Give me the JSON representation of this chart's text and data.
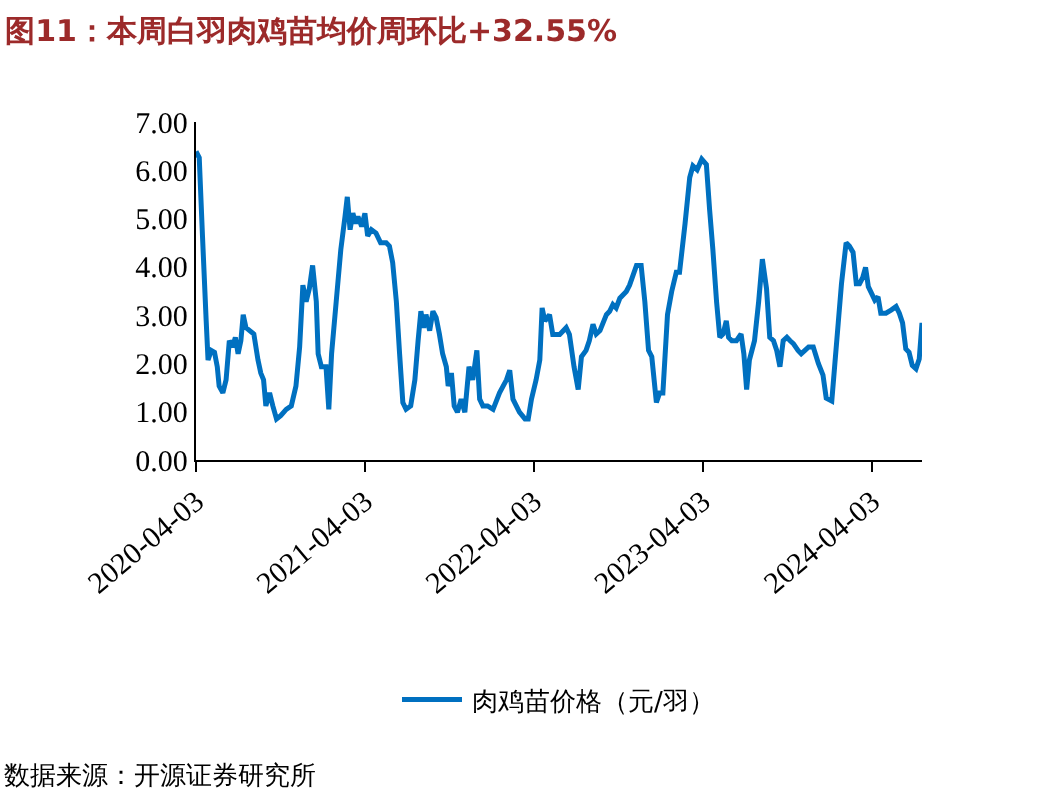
{
  "chart_data": {
    "type": "line",
    "title": "图11：本周白羽肉鸡苗均价周环比+32.55%",
    "x": [
      "2020-04-03",
      "2020-04-10",
      "2020-04-17",
      "2020-04-25",
      "2020-04-29",
      "2020-05-06",
      "2020-05-13",
      "2020-05-19",
      "2020-05-23",
      "2020-05-31",
      "2020-06-07",
      "2020-06-14",
      "2020-06-21",
      "2020-06-27",
      "2020-07-03",
      "2020-07-09",
      "2020-07-14",
      "2020-07-20",
      "2020-08-06",
      "2020-08-15",
      "2020-08-21",
      "2020-08-27",
      "2020-09-01",
      "2020-09-09",
      "2020-09-16",
      "2020-09-24",
      "2020-10-03",
      "2020-10-15",
      "2020-10-26",
      "2020-11-05",
      "2020-11-13",
      "2020-11-20",
      "2020-11-27",
      "2020-12-04",
      "2020-12-11",
      "2020-12-19",
      "2020-12-23",
      "2020-12-30",
      "2021-01-09",
      "2021-01-15",
      "2021-01-21",
      "2021-01-31",
      "2021-02-10",
      "2021-02-19",
      "2021-02-24",
      "2021-03-02",
      "2021-03-08",
      "2021-03-14",
      "2021-03-19",
      "2021-03-27",
      "2021-04-03",
      "2021-04-09",
      "2021-04-17",
      "2021-04-27",
      "2021-05-07",
      "2021-05-19",
      "2021-05-26",
      "2021-06-02",
      "2021-06-10",
      "2021-06-17",
      "2021-06-24",
      "2021-07-01",
      "2021-07-11",
      "2021-07-20",
      "2021-07-27",
      "2021-08-02",
      "2021-08-08",
      "2021-08-13",
      "2021-08-21",
      "2021-08-28",
      "2021-09-04",
      "2021-09-11",
      "2021-09-18",
      "2021-09-26",
      "2021-09-30",
      "2021-10-07",
      "2021-10-13",
      "2021-10-20",
      "2021-10-28",
      "2021-11-05",
      "2021-11-14",
      "2021-11-22",
      "2021-12-01",
      "2021-12-07",
      "2021-12-14",
      "2021-12-24",
      "2022-01-05",
      "2022-01-19",
      "2022-02-03",
      "2022-02-10",
      "2022-02-17",
      "2022-03-03",
      "2022-03-15",
      "2022-03-22",
      "2022-03-29",
      "2022-04-08",
      "2022-04-16",
      "2022-04-21",
      "2022-04-27",
      "2022-05-07",
      "2022-05-14",
      "2022-05-29",
      "2022-06-12",
      "2022-06-19",
      "2022-06-29",
      "2022-07-08",
      "2022-07-15",
      "2022-07-25",
      "2022-08-01",
      "2022-08-09",
      "2022-08-16",
      "2022-08-24",
      "2022-09-07",
      "2022-09-14",
      "2022-09-21",
      "2022-09-28",
      "2022-10-06",
      "2022-10-20",
      "2022-10-27",
      "2022-11-11",
      "2022-11-21",
      "2022-11-29",
      "2022-12-07",
      "2022-12-14",
      "2022-12-24",
      "2022-12-31",
      "2023-01-07",
      "2023-01-17",
      "2023-01-26",
      "2023-02-05",
      "2023-02-12",
      "2023-02-24",
      "2023-03-06",
      "2023-03-13",
      "2023-03-22",
      "2023-04-01",
      "2023-04-11",
      "2023-04-18",
      "2023-04-25",
      "2023-05-03",
      "2023-05-10",
      "2023-05-17",
      "2023-05-24",
      "2023-05-29",
      "2023-06-05",
      "2023-06-15",
      "2023-06-25",
      "2023-07-01",
      "2023-07-07",
      "2023-07-13",
      "2023-07-24",
      "2023-08-02",
      "2023-08-10",
      "2023-08-19",
      "2023-08-26",
      "2023-09-03",
      "2023-09-10",
      "2023-09-17",
      "2023-09-24",
      "2023-10-02",
      "2023-10-09",
      "2023-10-16",
      "2023-10-26",
      "2023-11-02",
      "2023-11-10",
      "2023-11-18",
      "2023-11-28",
      "2023-12-09",
      "2023-12-19",
      "2023-12-26",
      "2024-01-07",
      "2024-01-14",
      "2024-01-21",
      "2024-01-28",
      "2024-02-07",
      "2024-02-14",
      "2024-02-22",
      "2024-02-29",
      "2024-03-07",
      "2024-03-14",
      "2024-03-20",
      "2024-03-26",
      "2024-04-02",
      "2024-04-09",
      "2024-04-16",
      "2024-04-22",
      "2024-05-03",
      "2024-05-15",
      "2024-05-25",
      "2024-06-01",
      "2024-06-08",
      "2024-06-15",
      "2024-06-22",
      "2024-06-29",
      "2024-07-07",
      "2024-07-14",
      "2024-07-20"
    ],
    "series": [
      {
        "name": "肉鸡苗价格（元/羽）",
        "color": "#0070c0",
        "values": [
          6.39,
          6.26,
          4.64,
          2.88,
          2.07,
          2.27,
          2.23,
          1.93,
          1.53,
          1.39,
          1.66,
          2.47,
          2.34,
          2.54,
          2.2,
          2.47,
          3.01,
          2.74,
          2.61,
          2.07,
          1.8,
          1.66,
          1.12,
          1.39,
          1.12,
          0.85,
          0.92,
          1.05,
          1.12,
          1.53,
          2.34,
          3.62,
          3.28,
          3.55,
          4.03,
          3.28,
          2.2,
          1.93,
          1.93,
          1.05,
          2.2,
          3.28,
          4.36,
          5.04,
          5.45,
          4.77,
          5.11,
          4.9,
          5.04,
          4.84,
          5.11,
          4.64,
          4.77,
          4.7,
          4.5,
          4.5,
          4.43,
          4.09,
          3.28,
          2.2,
          1.19,
          1.05,
          1.12,
          1.66,
          2.47,
          3.08,
          2.74,
          3.01,
          2.68,
          3.08,
          2.95,
          2.61,
          2.2,
          1.93,
          1.53,
          1.8,
          1.12,
          0.99,
          1.26,
          0.99,
          1.93,
          1.66,
          2.27,
          1.26,
          1.12,
          1.12,
          1.05,
          1.39,
          1.66,
          1.86,
          1.26,
          0.99,
          0.85,
          0.85,
          1.26,
          1.66,
          2.07,
          3.15,
          2.88,
          3.01,
          2.6,
          2.6,
          2.74,
          2.6,
          1.93,
          1.46,
          2.14,
          2.27,
          2.47,
          2.81,
          2.61,
          2.68,
          3.01,
          3.08,
          3.22,
          3.15,
          3.35,
          3.49,
          3.62,
          4.03,
          4.03,
          3.28,
          2.27,
          2.14,
          1.19,
          1.39,
          1.39,
          3.01,
          3.49,
          3.89,
          3.89,
          4.9,
          5.85,
          6.09,
          6.01,
          6.23,
          6.12,
          5.18,
          4.36,
          3.28,
          2.54,
          2.61,
          2.88,
          2.54,
          2.47,
          2.47,
          2.61,
          2.2,
          1.46,
          2.07,
          2.47,
          3.28,
          4.16,
          3.55,
          2.54,
          2.47,
          2.27,
          1.93,
          2.47,
          2.54,
          2.47,
          2.41,
          2.27,
          2.2,
          2.27,
          2.34,
          2.34,
          2.0,
          1.76,
          1.28,
          1.22,
          2.03,
          2.84,
          3.65,
          4.5,
          4.43,
          4.3,
          3.65,
          3.65,
          3.78,
          3.99,
          3.59,
          3.45,
          3.31,
          3.38,
          3.04,
          3.04,
          3.11,
          3.18,
          3.04,
          2.84,
          2.3,
          2.23,
          1.96,
          1.89,
          2.09,
          2.84
        ]
      }
    ],
    "xlim": [
      "2020-04-03",
      "2024-07-20"
    ],
    "xticks": [
      "2020-04-03",
      "2021-04-03",
      "2022-04-03",
      "2023-04-03",
      "2024-04-03"
    ],
    "ylim": [
      0,
      7
    ],
    "yticks": [
      {
        "value": 0,
        "label": "0.00"
      },
      {
        "value": 1,
        "label": "1.00"
      },
      {
        "value": 2,
        "label": "2.00"
      },
      {
        "value": 3,
        "label": "3.00"
      },
      {
        "value": 4,
        "label": "4.00"
      },
      {
        "value": 5,
        "label": "5.00"
      },
      {
        "value": 6,
        "label": "6.00"
      },
      {
        "value": 7,
        "label": "7.00"
      }
    ],
    "legend": "bottom",
    "marker": "none",
    "line_style": "solid",
    "annotations": [
      "数据来源：开源证券研究所"
    ]
  }
}
